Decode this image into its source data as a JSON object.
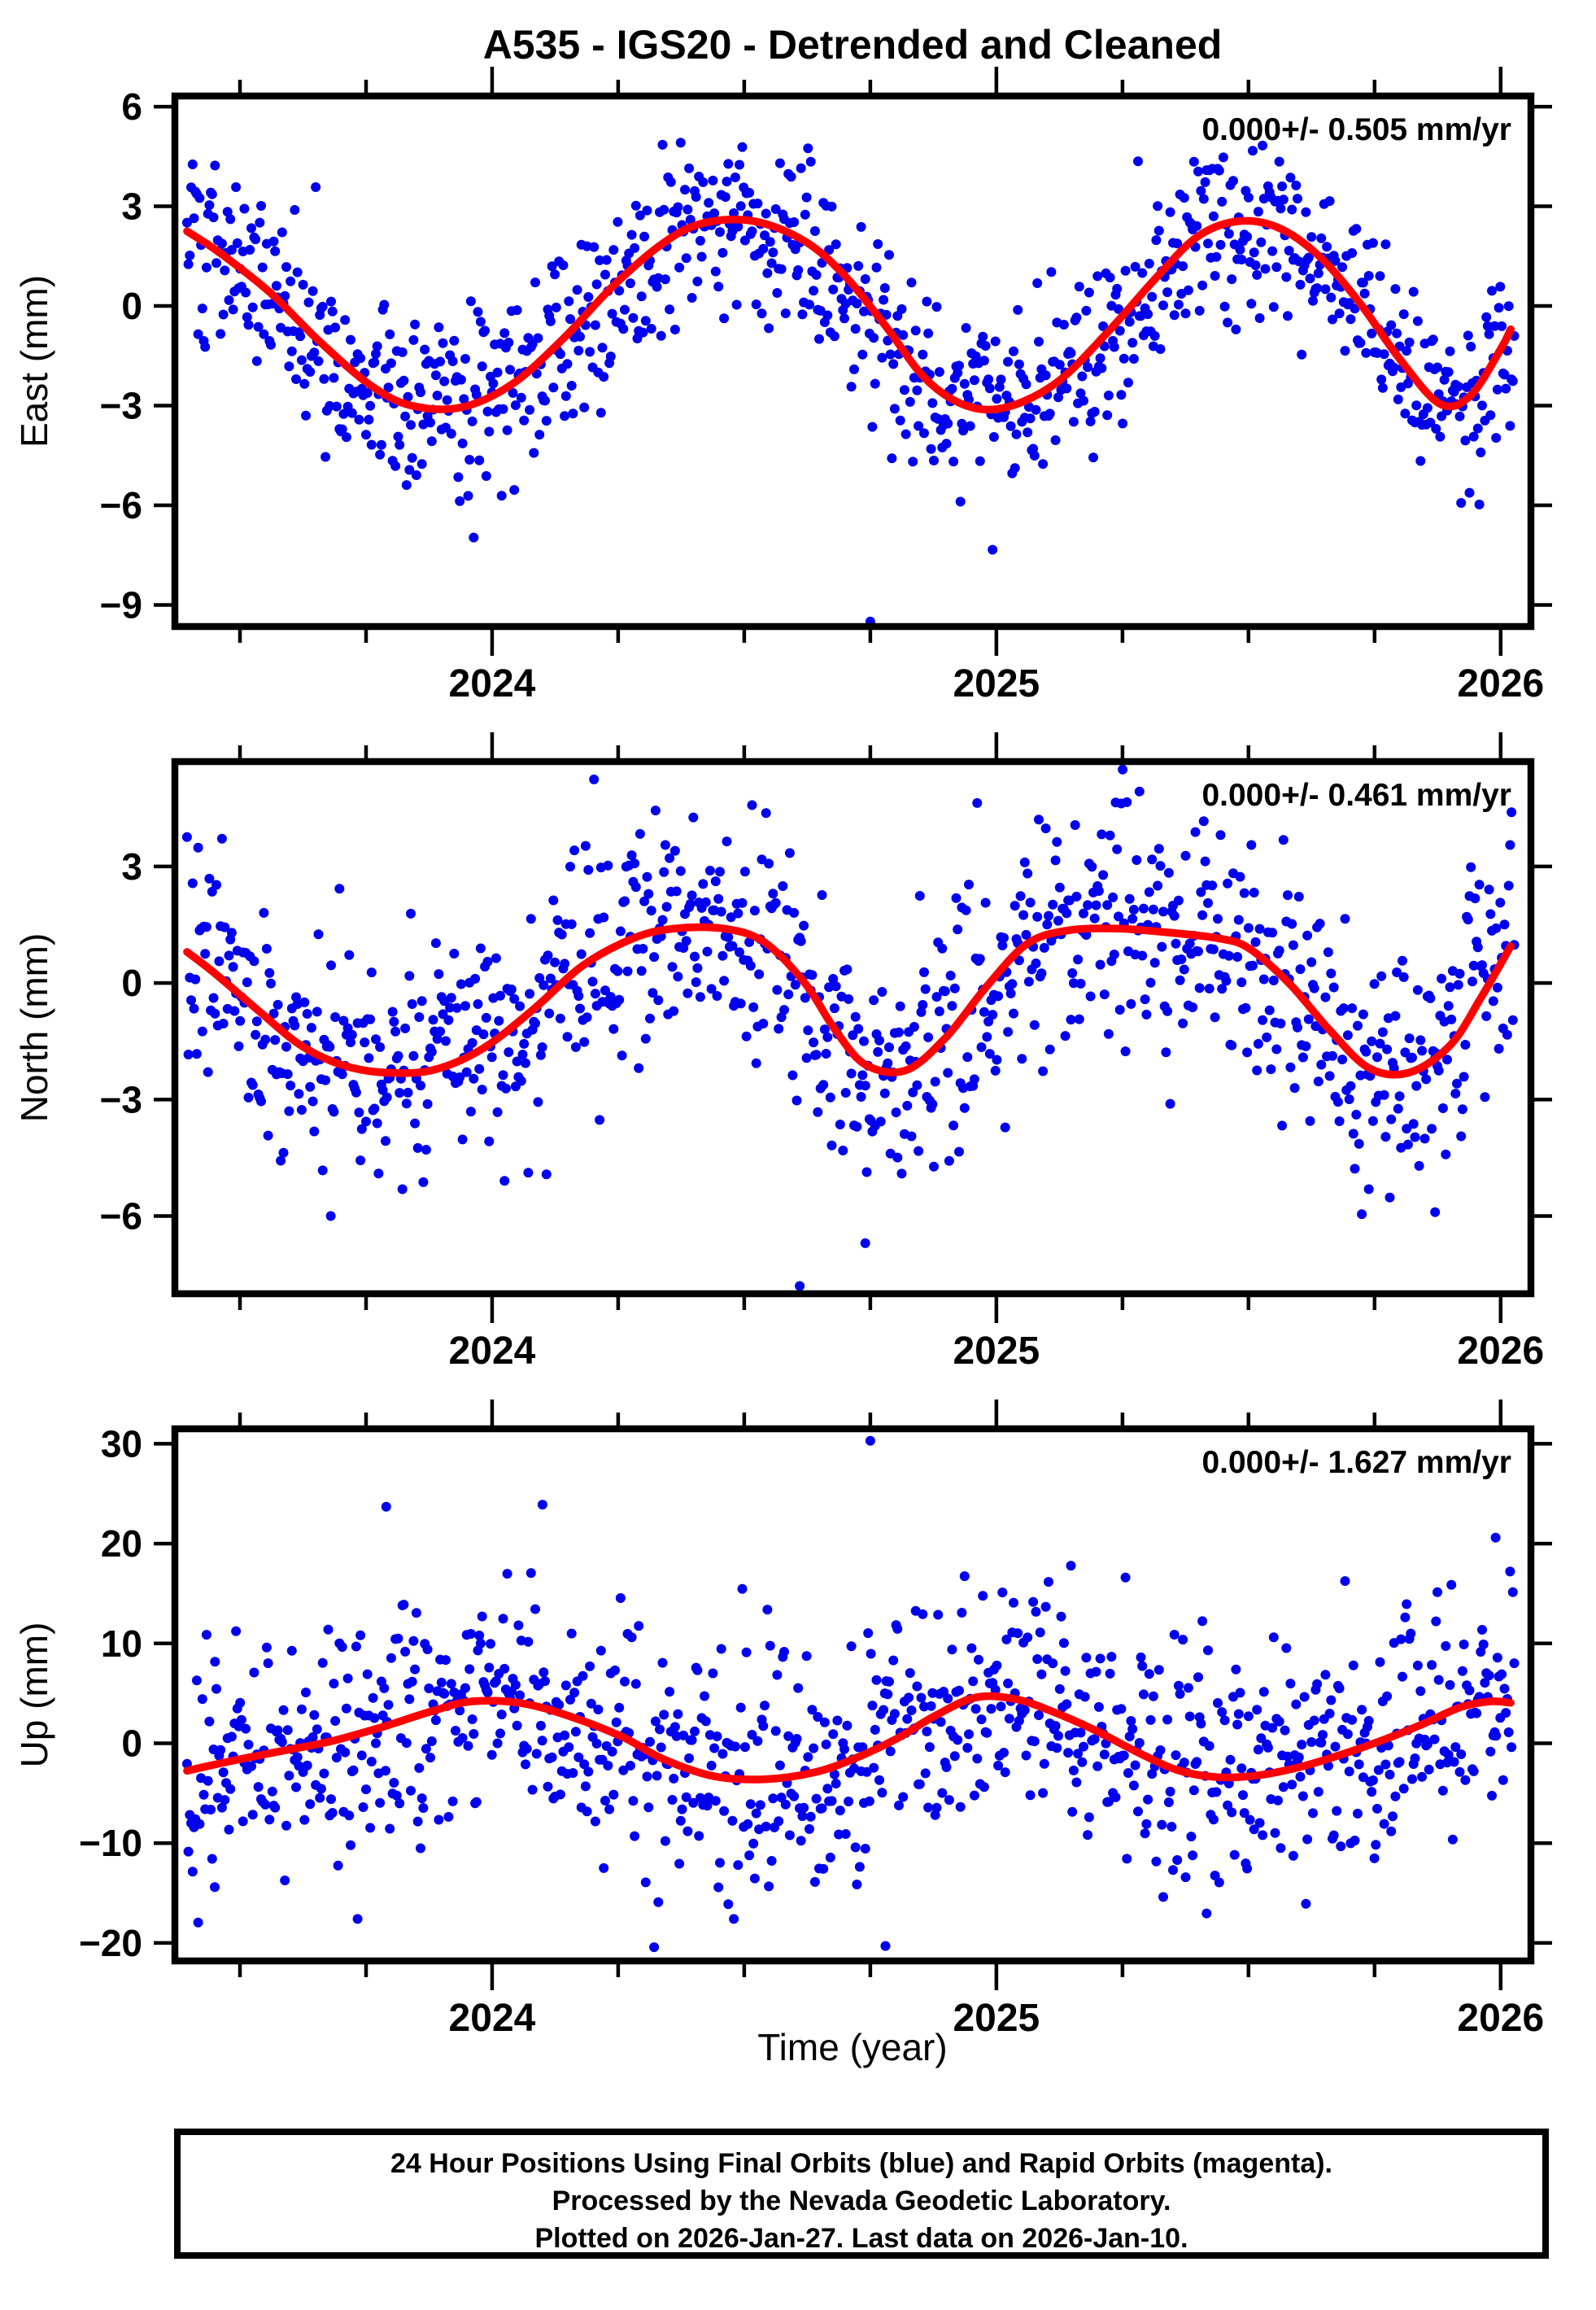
{
  "title": "A535 - IGS20 - Detrended and Cleaned",
  "colors": {
    "points": "#0000ee",
    "fit_line": "#ff0000",
    "frame": "#000000",
    "background": "#ffffff"
  },
  "xaxis": {
    "label": "Time (year)",
    "min": 2023.371,
    "max": 2026.06,
    "major_ticks": [
      2024,
      2025,
      2026
    ],
    "minor_step": 0.25
  },
  "footer": {
    "lines": [
      "24 Hour Positions Using Final Orbits (blue) and Rapid Orbits (magenta).",
      "Processed by the Nevada Geodetic Laboratory.",
      "Plotted on 2026-Jan-27. Last data on 2026-Jan-10."
    ]
  },
  "chart_data": [
    {
      "type": "scatter",
      "name": "east",
      "ylabel": "East (mm)",
      "annotation": "0.000+/- 0.505 mm/yr",
      "ylim": [
        -9.65,
        6.32
      ],
      "yticks": [
        6,
        3,
        0,
        -3,
        -6,
        -9
      ],
      "fit_curve": [
        [
          2023.395,
          2.25
        ],
        [
          2023.46,
          1.6
        ],
        [
          2023.56,
          0.4
        ],
        [
          2023.66,
          -1.1
        ],
        [
          2023.76,
          -2.4
        ],
        [
          2023.84,
          -3.0
        ],
        [
          2023.94,
          -3.05
        ],
        [
          2024.04,
          -2.35
        ],
        [
          2024.14,
          -1.0
        ],
        [
          2024.24,
          0.6
        ],
        [
          2024.34,
          1.9
        ],
        [
          2024.42,
          2.5
        ],
        [
          2024.52,
          2.55
        ],
        [
          2024.62,
          1.95
        ],
        [
          2024.7,
          0.9
        ],
        [
          2024.78,
          -0.6
        ],
        [
          2024.86,
          -2.2
        ],
        [
          2024.94,
          -3.0
        ],
        [
          2025.02,
          -3.05
        ],
        [
          2025.12,
          -2.3
        ],
        [
          2025.22,
          -0.8
        ],
        [
          2025.32,
          0.9
        ],
        [
          2025.4,
          2.1
        ],
        [
          2025.48,
          2.55
        ],
        [
          2025.56,
          2.35
        ],
        [
          2025.64,
          1.5
        ],
        [
          2025.72,
          0.1
        ],
        [
          2025.8,
          -1.6
        ],
        [
          2025.88,
          -2.95
        ],
        [
          2025.94,
          -2.7
        ],
        [
          2026.0,
          -1.3
        ],
        [
          2026.02,
          -0.7
        ]
      ],
      "scatter": {
        "n": 950,
        "sigma": 1.4,
        "seed": 101,
        "t_start": 2023.395,
        "t_end": 2026.027
      },
      "outliers": [
        [
          2024.75,
          -9.5
        ]
      ]
    },
    {
      "type": "scatter",
      "name": "north",
      "ylabel": "North (mm)",
      "annotation": "0.000+/- 0.461 mm/yr",
      "ylim": [
        -8.0,
        5.7
      ],
      "yticks": [
        3,
        0,
        -3,
        -6
      ],
      "fit_curve": [
        [
          2023.395,
          0.8
        ],
        [
          2023.45,
          0.25
        ],
        [
          2023.54,
          -0.75
        ],
        [
          2023.62,
          -1.6
        ],
        [
          2023.7,
          -2.1
        ],
        [
          2023.78,
          -2.3
        ],
        [
          2023.88,
          -2.25
        ],
        [
          2023.98,
          -1.7
        ],
        [
          2024.08,
          -0.7
        ],
        [
          2024.18,
          0.45
        ],
        [
          2024.28,
          1.15
        ],
        [
          2024.36,
          1.4
        ],
        [
          2024.46,
          1.4
        ],
        [
          2024.54,
          1.05
        ],
        [
          2024.62,
          0.0
        ],
        [
          2024.68,
          -1.2
        ],
        [
          2024.74,
          -2.1
        ],
        [
          2024.82,
          -2.25
        ],
        [
          2024.9,
          -1.4
        ],
        [
          2024.98,
          -0.1
        ],
        [
          2025.06,
          1.0
        ],
        [
          2025.14,
          1.35
        ],
        [
          2025.24,
          1.4
        ],
        [
          2025.34,
          1.3
        ],
        [
          2025.44,
          1.15
        ],
        [
          2025.5,
          0.9
        ],
        [
          2025.58,
          0.0
        ],
        [
          2025.66,
          -1.2
        ],
        [
          2025.74,
          -2.2
        ],
        [
          2025.82,
          -2.3
        ],
        [
          2025.9,
          -1.6
        ],
        [
          2025.96,
          -0.4
        ],
        [
          2026.02,
          0.95
        ]
      ],
      "scatter": {
        "n": 950,
        "sigma": 1.5,
        "seed": 202,
        "t_start": 2023.395,
        "t_end": 2026.027
      },
      "outliers": [
        [
          2023.68,
          -6.0
        ],
        [
          2024.61,
          -7.8
        ],
        [
          2024.74,
          -6.7
        ],
        [
          2025.87,
          -5.9
        ]
      ]
    },
    {
      "type": "scatter",
      "name": "up",
      "ylabel": "Up (mm)",
      "annotation": "0.000+/- 1.627 mm/yr",
      "ylim": [
        -21.8,
        31.5
      ],
      "yticks": [
        30,
        20,
        10,
        0,
        -10,
        -20
      ],
      "fit_curve": [
        [
          2023.395,
          -2.75
        ],
        [
          2023.48,
          -1.8
        ],
        [
          2023.58,
          -0.8
        ],
        [
          2023.68,
          0.2
        ],
        [
          2023.78,
          1.6
        ],
        [
          2023.88,
          3.2
        ],
        [
          2023.96,
          4.2
        ],
        [
          2024.06,
          4.0
        ],
        [
          2024.16,
          2.6
        ],
        [
          2024.26,
          0.6
        ],
        [
          2024.34,
          -1.6
        ],
        [
          2024.44,
          -3.3
        ],
        [
          2024.54,
          -3.6
        ],
        [
          2024.64,
          -2.9
        ],
        [
          2024.72,
          -1.5
        ],
        [
          2024.8,
          0.4
        ],
        [
          2024.88,
          2.8
        ],
        [
          2024.96,
          4.6
        ],
        [
          2025.04,
          4.4
        ],
        [
          2025.12,
          3.0
        ],
        [
          2025.2,
          1.2
        ],
        [
          2025.28,
          -0.9
        ],
        [
          2025.36,
          -2.7
        ],
        [
          2025.44,
          -3.4
        ],
        [
          2025.52,
          -3.2
        ],
        [
          2025.6,
          -2.4
        ],
        [
          2025.68,
          -1.2
        ],
        [
          2025.76,
          0.2
        ],
        [
          2025.84,
          1.8
        ],
        [
          2025.92,
          3.6
        ],
        [
          2025.98,
          4.2
        ],
        [
          2026.02,
          4.05
        ]
      ],
      "scatter": {
        "n": 950,
        "sigma": 5.6,
        "seed": 303,
        "t_start": 2023.395,
        "t_end": 2026.027
      },
      "outliers": [
        [
          2023.45,
          -14.4
        ],
        [
          2023.79,
          23.7
        ],
        [
          2024.1,
          23.9
        ],
        [
          2024.75,
          30.3
        ],
        [
          2024.78,
          -20.3
        ],
        [
          2025.99,
          20.6
        ]
      ]
    }
  ]
}
